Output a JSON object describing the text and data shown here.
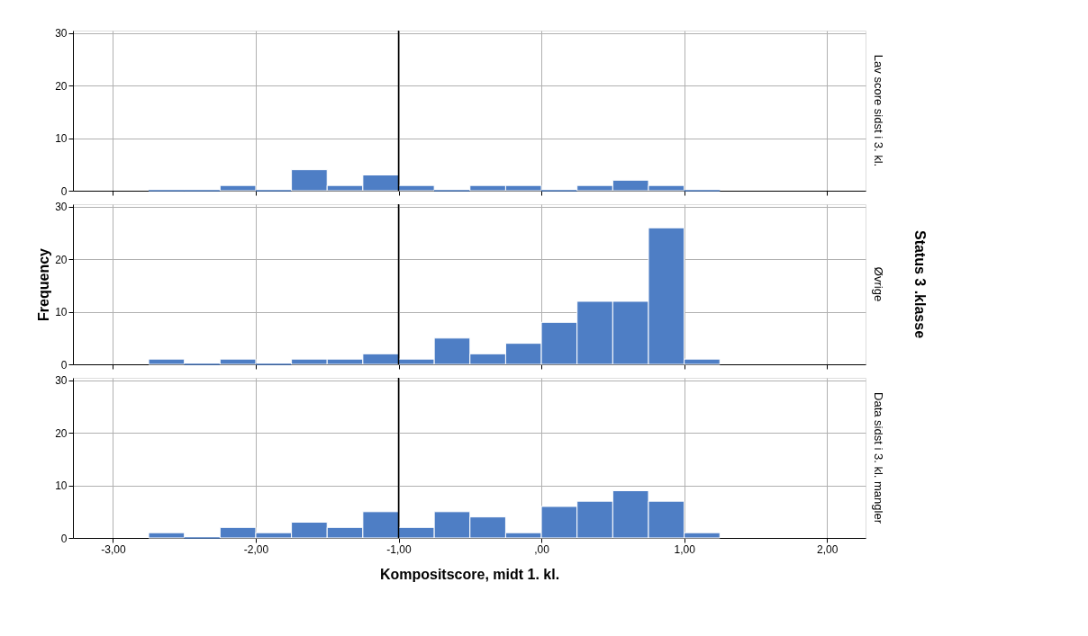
{
  "chart_data": [
    {
      "type": "histogram",
      "title": "Lav score sidst i 3. kl.",
      "bins": [
        -2.75,
        -2.5,
        -2.25,
        -2,
        -1.75,
        -1.5,
        -1.25,
        -1,
        -0.75,
        -0.5,
        -0.25,
        0,
        0.25,
        0.5,
        0.75,
        1,
        1.25
      ],
      "values": [
        0,
        0,
        1,
        0,
        4,
        1,
        3,
        1,
        0,
        1,
        1,
        0,
        1,
        2,
        1,
        0
      ],
      "color": "#4e7ec5",
      "xlim": [
        -3.28,
        2.27
      ],
      "xticks": [
        -3,
        -2,
        -1,
        0,
        1,
        2
      ],
      "ylim": [
        0,
        30.5
      ],
      "yticks": [
        0,
        10,
        20,
        30
      ],
      "grid": true,
      "tick_labels": "y",
      "ref_lines": [
        {
          "axis": "x",
          "value": -1,
          "color": "#000000"
        }
      ]
    },
    {
      "type": "histogram",
      "title": "Øvrige",
      "ylabel": "Frequency",
      "annotations": [
        "Status 3 .klasse"
      ],
      "bins": [
        -2.75,
        -2.5,
        -2.25,
        -2,
        -1.75,
        -1.5,
        -1.25,
        -1,
        -0.75,
        -0.5,
        -0.25,
        0,
        0.25,
        0.5,
        0.75,
        1,
        1.25
      ],
      "values": [
        1,
        0,
        1,
        0,
        1,
        1,
        2,
        1,
        5,
        2,
        4,
        8,
        12,
        12,
        26,
        1
      ],
      "color": "#4e7ec5",
      "xlim": [
        -3.28,
        2.27
      ],
      "xticks": [
        -3,
        -2,
        -1,
        0,
        1,
        2
      ],
      "ylim": [
        0,
        30.5
      ],
      "yticks": [
        0,
        10,
        20,
        30
      ],
      "grid": true,
      "tick_labels": "y",
      "ref_lines": [
        {
          "axis": "x",
          "value": -1,
          "color": "#000000"
        }
      ]
    },
    {
      "type": "histogram",
      "title": "Data sidst i 3. kl. mangler",
      "xlabel": "Kompositscore, midt 1. kl.",
      "bins": [
        -2.75,
        -2.5,
        -2.25,
        -2,
        -1.75,
        -1.5,
        -1.25,
        -1,
        -0.75,
        -0.5,
        -0.25,
        0,
        0.25,
        0.5,
        0.75,
        1,
        1.25
      ],
      "values": [
        1,
        0,
        2,
        1,
        3,
        2,
        5,
        2,
        5,
        4,
        1,
        6,
        7,
        9,
        7,
        1
      ],
      "color": "#4e7ec5",
      "xlim": [
        -3.28,
        2.27
      ],
      "xticks": [
        {
          "value": -3,
          "label": "-3,00"
        },
        {
          "value": -2,
          "label": "-2,00"
        },
        {
          "value": -1,
          "label": "-1,00"
        },
        {
          "value": 0,
          "label": ",00"
        },
        {
          "value": 1,
          "label": "1,00"
        },
        {
          "value": 2,
          "label": "2,00"
        }
      ],
      "ylim": [
        0,
        30.5
      ],
      "yticks": [
        0,
        10,
        20,
        30
      ],
      "grid": true,
      "ref_lines": [
        {
          "axis": "x",
          "value": -1,
          "color": "#000000"
        }
      ]
    }
  ]
}
